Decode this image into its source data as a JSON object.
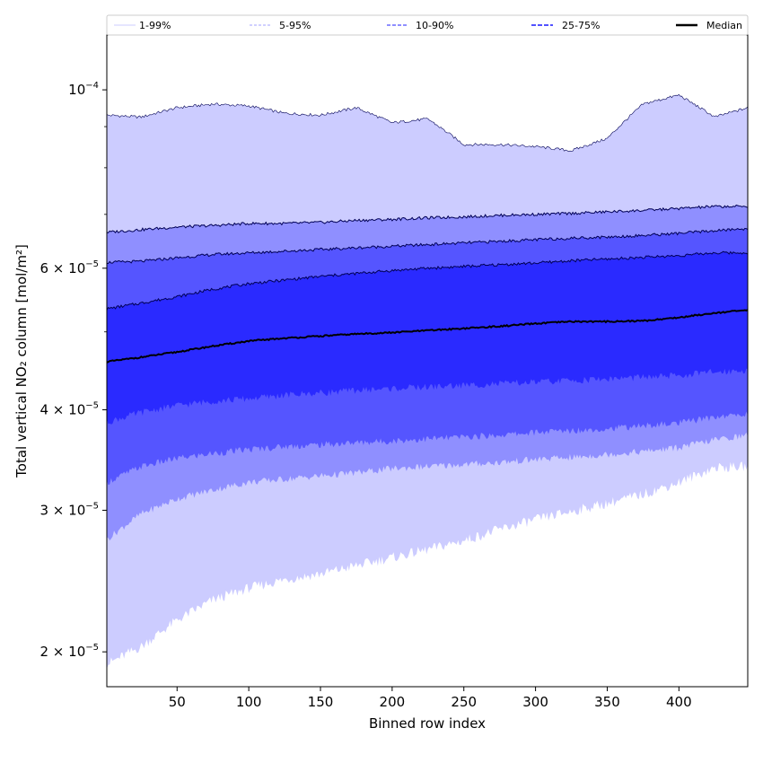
{
  "chart_data": {
    "type": "area",
    "title": "",
    "xlabel": "Binned row index",
    "ylabel": "Total vertical NO₂ column [mol/m²]",
    "y_scale": "log",
    "xlim": [
      1,
      448
    ],
    "ylim": [
      1.81e-05,
      0.000117
    ],
    "grid": false,
    "legend_placement": "top",
    "x_ticks": [
      {
        "value": 50,
        "label": "50"
      },
      {
        "value": 100,
        "label": "100"
      },
      {
        "value": 150,
        "label": "150"
      },
      {
        "value": 200,
        "label": "200"
      },
      {
        "value": 250,
        "label": "250"
      },
      {
        "value": 300,
        "label": "300"
      },
      {
        "value": 350,
        "label": "350"
      },
      {
        "value": 400,
        "label": "400"
      }
    ],
    "y_ticks": [
      {
        "value": 2e-05,
        "mant": "2",
        "exp": "−5"
      },
      {
        "value": 3e-05,
        "mant": "3",
        "exp": "−5"
      },
      {
        "value": 4e-05,
        "mant": "4",
        "exp": "−5"
      },
      {
        "value": 6e-05,
        "mant": "6",
        "exp": "−5"
      },
      {
        "value": 0.0001,
        "mant": "",
        "exp": "−4"
      }
    ],
    "x": [
      1,
      25,
      50,
      75,
      100,
      125,
      150,
      175,
      200,
      225,
      250,
      275,
      300,
      325,
      350,
      375,
      400,
      425,
      448
    ],
    "series": [
      {
        "name": "1-99%",
        "lower": [
          1.93e-05,
          2.03e-05,
          2.19e-05,
          2.32e-05,
          2.4e-05,
          2.46e-05,
          2.5e-05,
          2.56e-05,
          2.62e-05,
          2.68e-05,
          2.75e-05,
          2.84e-05,
          2.92e-05,
          2.99e-05,
          3.06e-05,
          3.14e-05,
          3.25e-05,
          3.39e-05,
          3.4e-05
        ],
        "upper": [
          9.3e-05,
          9.25e-05,
          9.5e-05,
          9.6e-05,
          9.55e-05,
          9.35e-05,
          9.3e-05,
          9.5e-05,
          9.1e-05,
          9.2e-05,
          8.55e-05,
          8.55e-05,
          8.5e-05,
          8.4e-05,
          8.7e-05,
          9.6e-05,
          9.85e-05,
          9.25e-05,
          9.5e-05
        ]
      },
      {
        "name": "5-95%",
        "lower": [
          2.76e-05,
          2.97e-05,
          3.1e-05,
          3.18e-05,
          3.25e-05,
          3.28e-05,
          3.31e-05,
          3.34e-05,
          3.38e-05,
          3.4e-05,
          3.42e-05,
          3.44e-05,
          3.47e-05,
          3.49e-05,
          3.52e-05,
          3.55e-05,
          3.59e-05,
          3.67e-05,
          3.72e-05
        ],
        "upper": [
          6.65e-05,
          6.7e-05,
          6.75e-05,
          6.78e-05,
          6.82e-05,
          6.82e-05,
          6.84e-05,
          6.88e-05,
          6.9e-05,
          6.93e-05,
          6.95e-05,
          6.98e-05,
          7e-05,
          7.02e-05,
          7.05e-05,
          7.08e-05,
          7.12e-05,
          7.16e-05,
          7.16e-05
        ]
      },
      {
        "name": "10-90%",
        "lower": [
          3.25e-05,
          3.4e-05,
          3.48e-05,
          3.53e-05,
          3.57e-05,
          3.6e-05,
          3.62e-05,
          3.64e-05,
          3.66e-05,
          3.68e-05,
          3.7e-05,
          3.72e-05,
          3.75e-05,
          3.77e-05,
          3.79e-05,
          3.82e-05,
          3.85e-05,
          3.92e-05,
          3.95e-05
        ]
      },
      {
        "name": "25-75%",
        "lower": [
          3.86e-05,
          3.97e-05,
          4.05e-05,
          4.1e-05,
          4.13e-05,
          4.17e-05,
          4.2e-05,
          4.23e-05,
          4.25e-05,
          4.27e-05,
          4.29e-05,
          4.31e-05,
          4.33e-05,
          4.35e-05,
          4.37e-05,
          4.39e-05,
          4.41e-05,
          4.46e-05,
          4.48e-05
        ]
      },
      {
        "name": "Median",
        "values": [
          4.59e-05,
          4.65e-05,
          4.72e-05,
          4.8e-05,
          4.87e-05,
          4.91e-05,
          4.94e-05,
          4.97e-05,
          4.99e-05,
          5.02e-05,
          5.05e-05,
          5.08e-05,
          5.12e-05,
          5.15e-05,
          5.15e-05,
          5.16e-05,
          5.21e-05,
          5.28e-05,
          5.32e-05
        ]
      }
    ],
    "band_upper_extra": {
      "10-90%": [
        6.1e-05,
        6.12e-05,
        6.18e-05,
        6.24e-05,
        6.27e-05,
        6.3e-05,
        6.33e-05,
        6.36e-05,
        6.39e-05,
        6.42e-05,
        6.45e-05,
        6.48e-05,
        6.51e-05,
        6.54e-05,
        6.56e-05,
        6.59e-05,
        6.63e-05,
        6.68e-05,
        6.72e-05
      ],
      "25-75%": [
        5.34e-05,
        5.43e-05,
        5.53e-05,
        5.65e-05,
        5.74e-05,
        5.8e-05,
        5.86e-05,
        5.91e-05,
        5.96e-05,
        6e-05,
        6.03e-05,
        6.06e-05,
        6.09e-05,
        6.13e-05,
        6.16e-05,
        6.19e-05,
        6.22e-05,
        6.27e-05,
        6.27e-05
      ]
    },
    "colors": {
      "1-99%": "#ccccff",
      "5-95%": "#8f8fff",
      "10-90%": "#5555ff",
      "25-75%": "#2a2aff",
      "median": "#000000",
      "band_edge": "#000055"
    }
  },
  "legend": {
    "items": [
      {
        "label": "1-99%",
        "style": "solid-thin",
        "color": "#ccccff"
      },
      {
        "label": "5-95%",
        "style": "dashed-thin",
        "color": "#a0a0ff"
      },
      {
        "label": "10-90%",
        "style": "dashed",
        "color": "#6a6aff"
      },
      {
        "label": "25-75%",
        "style": "dashed-thick",
        "color": "#3a3aff"
      },
      {
        "label": "Median",
        "style": "solid-thick",
        "color": "#000000"
      }
    ]
  }
}
